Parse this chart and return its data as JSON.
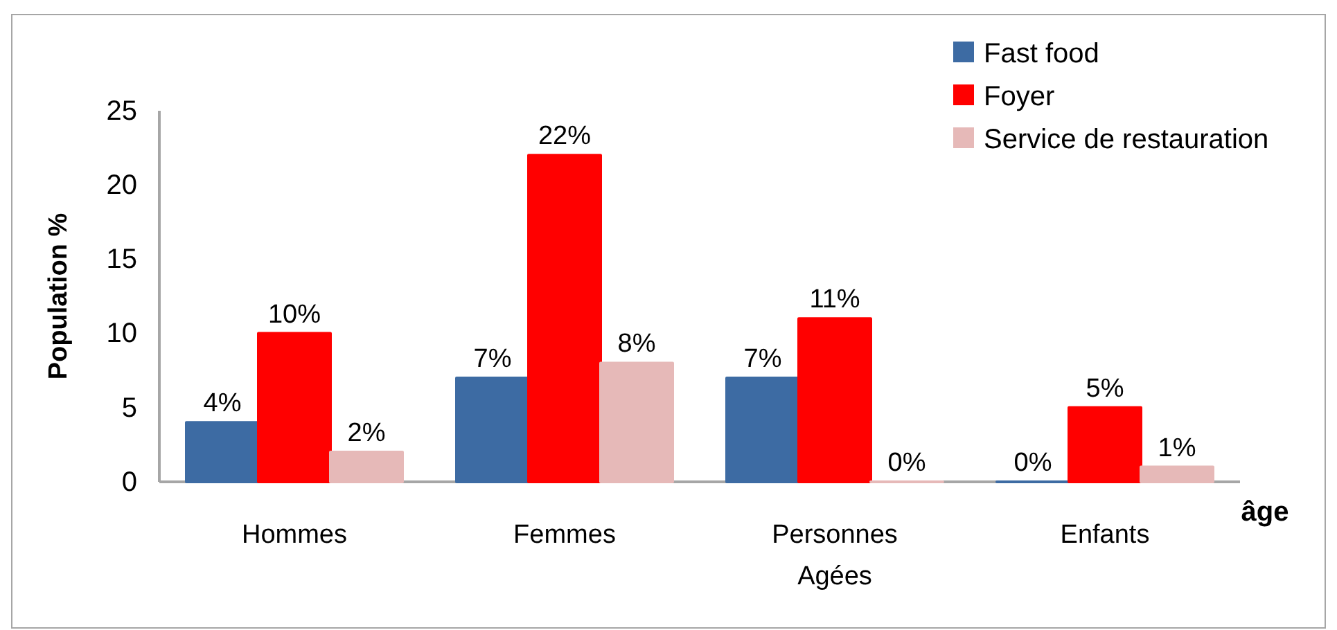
{
  "chart_data": {
    "type": "bar",
    "xlabel": "âge",
    "ylabel": "Population %",
    "categories": [
      "Hommes",
      "Femmes",
      "Personnes Agées",
      "Enfants"
    ],
    "series": [
      {
        "name": "Fast food",
        "color": "#3d6ba3",
        "values": [
          4,
          7,
          7,
          0
        ],
        "value_labels": [
          "4%",
          "7%",
          "7%",
          "0%"
        ]
      },
      {
        "name": "Foyer",
        "color": "#ff0000",
        "values": [
          10,
          22,
          11,
          5
        ],
        "value_labels": [
          "10%",
          "22%",
          "11%",
          "5%"
        ]
      },
      {
        "name": "Service de restauration",
        "color": "#e6b9b8",
        "values": [
          2,
          8,
          0,
          1
        ],
        "value_labels": [
          "2%",
          "8%",
          "0%",
          "1%"
        ]
      }
    ],
    "ylim": [
      0,
      25
    ],
    "yticks": [
      0,
      5,
      10,
      15,
      20,
      25
    ],
    "grid": false,
    "legend": "top right"
  }
}
